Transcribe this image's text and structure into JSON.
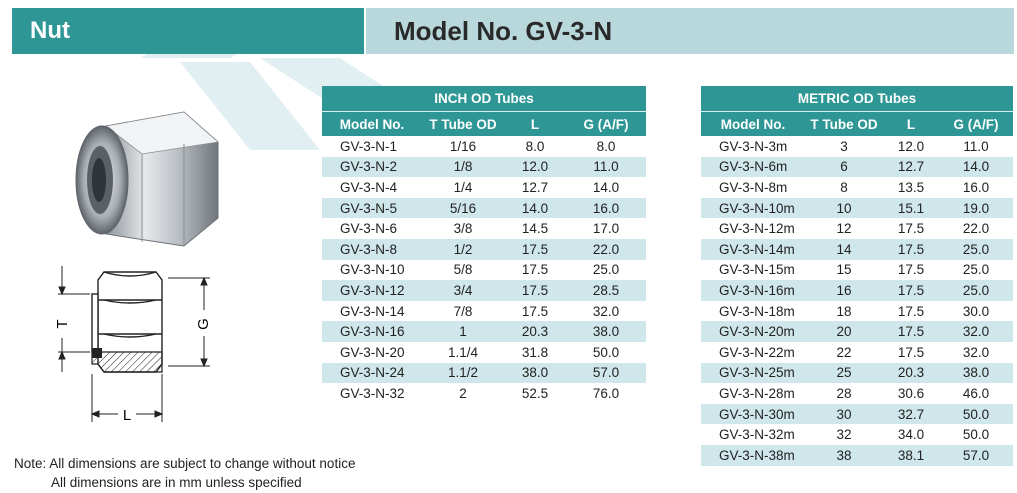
{
  "header": {
    "category": "Nut",
    "model_title": "Model No. GV-3-N"
  },
  "inch_table": {
    "title": "INCH OD Tubes",
    "columns": [
      "Model No.",
      "T Tube OD",
      "L",
      "G (A/F)"
    ],
    "rows": [
      [
        "GV-3-N-1",
        "1/16",
        "8.0",
        "8.0"
      ],
      [
        "GV-3-N-2",
        "1/8",
        "12.0",
        "11.0"
      ],
      [
        "GV-3-N-4",
        "1/4",
        "12.7",
        "14.0"
      ],
      [
        "GV-3-N-5",
        "5/16",
        "14.0",
        "16.0"
      ],
      [
        "GV-3-N-6",
        "3/8",
        "14.5",
        "17.0"
      ],
      [
        "GV-3-N-8",
        "1/2",
        "17.5",
        "22.0"
      ],
      [
        "GV-3-N-10",
        "5/8",
        "17.5",
        "25.0"
      ],
      [
        "GV-3-N-12",
        "3/4",
        "17.5",
        "28.5"
      ],
      [
        "GV-3-N-14",
        "7/8",
        "17.5",
        "32.0"
      ],
      [
        "GV-3-N-16",
        "1",
        "20.3",
        "38.0"
      ],
      [
        "GV-3-N-20",
        "1.1/4",
        "31.8",
        "50.0"
      ],
      [
        "GV-3-N-24",
        "1.1/2",
        "38.0",
        "57.0"
      ],
      [
        "GV-3-N-32",
        "2",
        "52.5",
        "76.0"
      ]
    ]
  },
  "metric_table": {
    "title": "METRIC OD Tubes",
    "columns": [
      "Model No.",
      "T Tube OD",
      "L",
      "G (A/F)"
    ],
    "rows": [
      [
        "GV-3-N-3m",
        "3",
        "12.0",
        "11.0"
      ],
      [
        "GV-3-N-6m",
        "6",
        "12.7",
        "14.0"
      ],
      [
        "GV-3-N-8m",
        "8",
        "13.5",
        "16.0"
      ],
      [
        "GV-3-N-10m",
        "10",
        "15.1",
        "19.0"
      ],
      [
        "GV-3-N-12m",
        "12",
        "17.5",
        "22.0"
      ],
      [
        "GV-3-N-14m",
        "14",
        "17.5",
        "25.0"
      ],
      [
        "GV-3-N-15m",
        "15",
        "17.5",
        "25.0"
      ],
      [
        "GV-3-N-16m",
        "16",
        "17.5",
        "25.0"
      ],
      [
        "GV-3-N-18m",
        "18",
        "17.5",
        "30.0"
      ],
      [
        "GV-3-N-20m",
        "20",
        "17.5",
        "32.0"
      ],
      [
        "GV-3-N-22m",
        "22",
        "17.5",
        "32.0"
      ],
      [
        "GV-3-N-25m",
        "25",
        "20.3",
        "38.0"
      ],
      [
        "GV-3-N-28m",
        "28",
        "30.6",
        "46.0"
      ],
      [
        "GV-3-N-30m",
        "30",
        "32.7",
        "50.0"
      ],
      [
        "GV-3-N-32m",
        "32",
        "34.0",
        "50.0"
      ],
      [
        "GV-3-N-38m",
        "38",
        "38.1",
        "57.0"
      ]
    ]
  },
  "drawing_labels": {
    "t": "T",
    "g": "G",
    "l": "L"
  },
  "notes": {
    "line1": "Note: All dimensions are subject to change without notice",
    "line2": "All dimensions are in mm unless specified"
  },
  "colors": {
    "teal": "#2e9796",
    "light_teal": "#b8d8dc",
    "row_stripe": "#cfe6ea"
  }
}
